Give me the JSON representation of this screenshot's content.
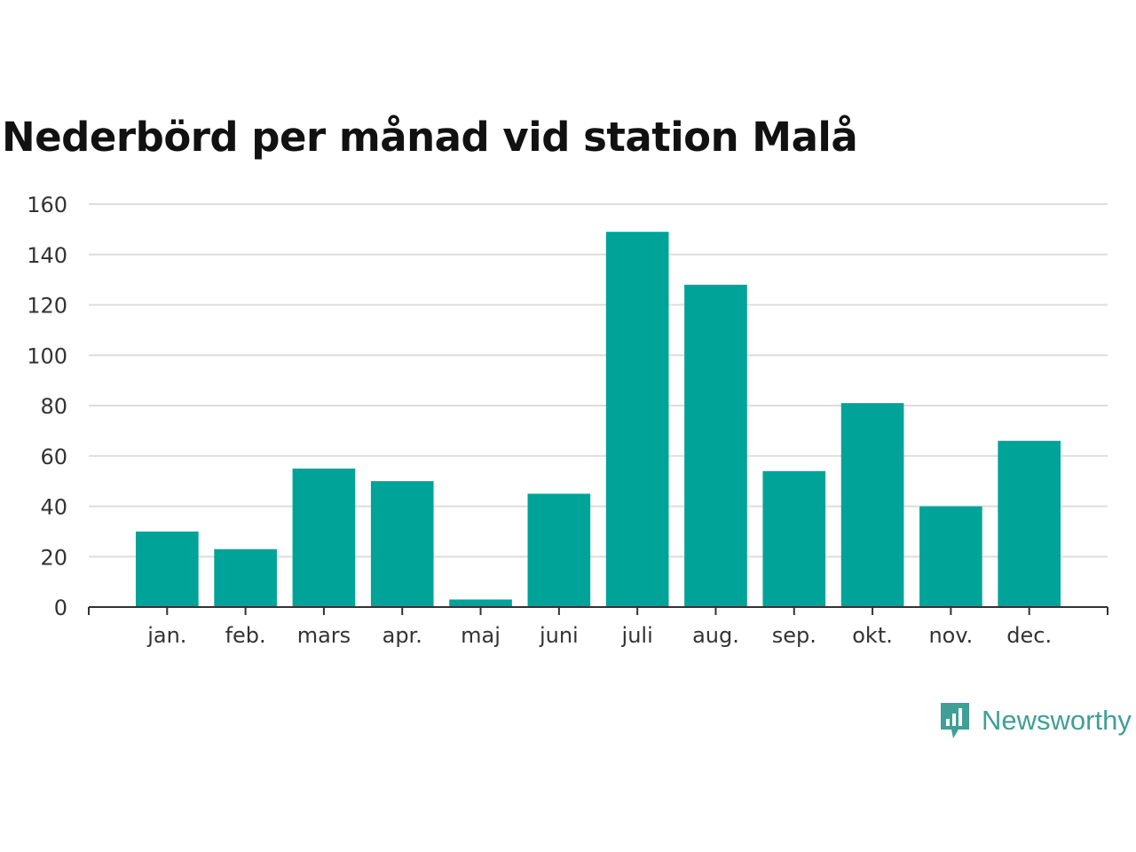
{
  "chart_data": {
    "type": "bar",
    "title": "Nederbörd per månad vid station Malå",
    "xlabel": "",
    "ylabel": "",
    "categories": [
      "jan.",
      "feb.",
      "mars",
      "apr.",
      "maj",
      "juni",
      "juli",
      "aug.",
      "sep.",
      "okt.",
      "nov.",
      "dec."
    ],
    "values": [
      30,
      23,
      55,
      50,
      3,
      45,
      149,
      128,
      54,
      81,
      40,
      66
    ],
    "ylim": [
      0,
      160
    ],
    "yticks": [
      0,
      20,
      40,
      60,
      80,
      100,
      120,
      140,
      160
    ],
    "grid": true,
    "bar_color": "#00a398",
    "grid_color": "#dddddd",
    "axis_color": "#333333"
  },
  "brand": {
    "name": "Newsworthy",
    "icon": "newsworthy-logo-icon",
    "color": "#3f9f97"
  }
}
